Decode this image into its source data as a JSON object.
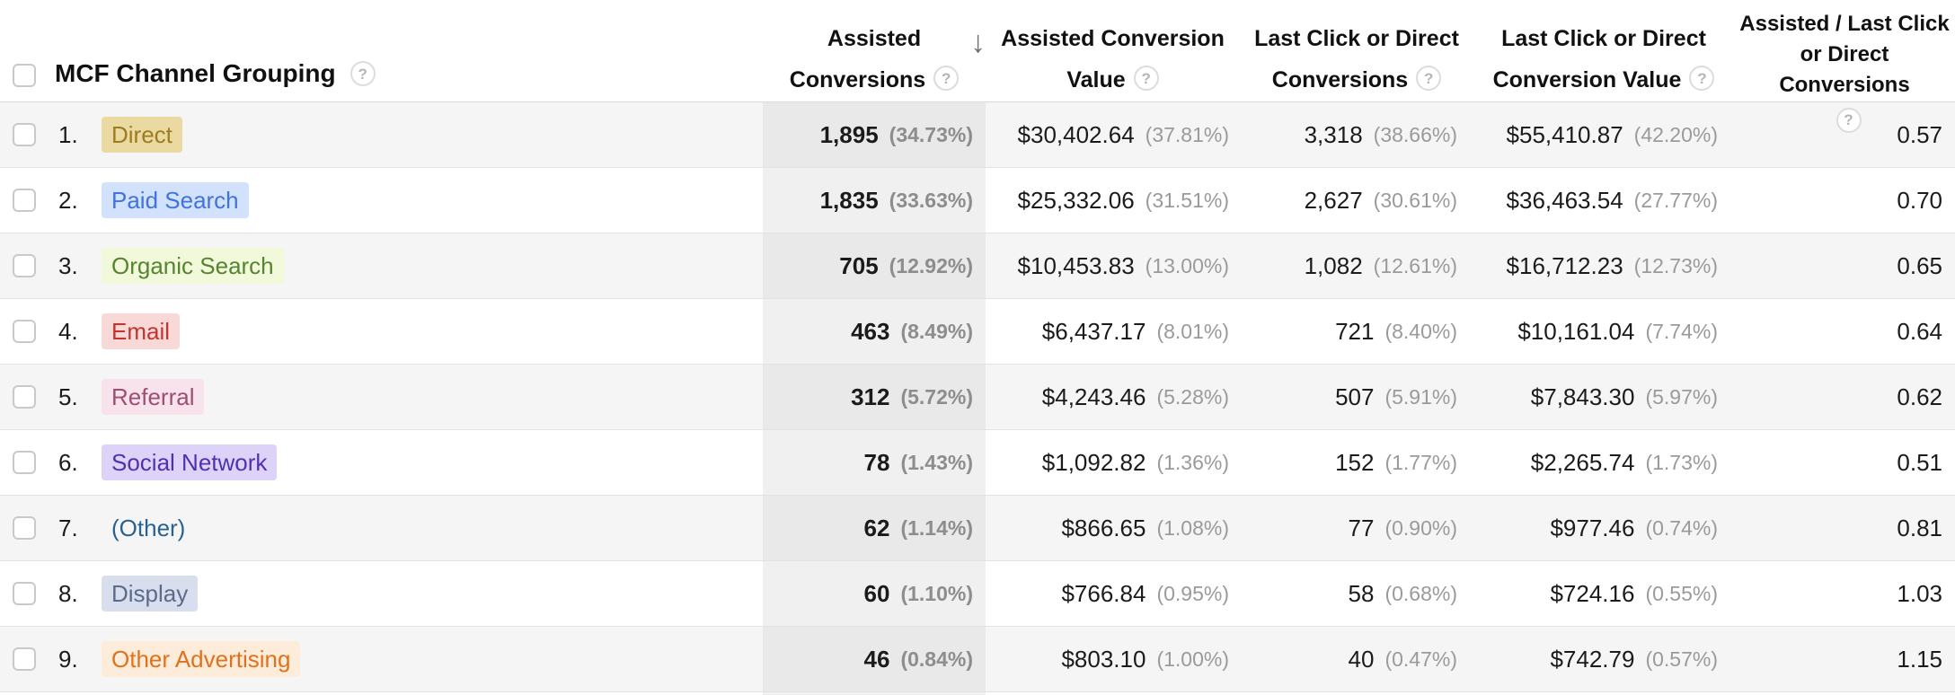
{
  "header": {
    "channel_col": "MCF Channel Grouping",
    "assisted": {
      "l1": "Assisted",
      "l2": "Conversions"
    },
    "assisted_value": {
      "l1": "Assisted Conversion",
      "l2": "Value"
    },
    "last_click": {
      "l1": "Last Click or Direct",
      "l2": "Conversions"
    },
    "last_click_value": {
      "l1": "Last Click or Direct",
      "l2": "Conversion Value"
    },
    "ratio": {
      "l1": "Assisted / Last Click",
      "l2": "or Direct Conversions"
    },
    "help_glyph": "?",
    "sort_icon": "↓",
    "sorted_column": "Assisted Conversions",
    "sort_direction": "descending"
  },
  "colors": {
    "sorted_column_bg_odd": "#e9e9e9",
    "sorted_column_bg_even": "#f0f0f0",
    "row_stripe_bg": "#f5f5f5",
    "row_border": "#e2e2e2",
    "value_text": "#1b1b1b",
    "pct_text": "#9a9a9a"
  },
  "rows": [
    {
      "num": "1.",
      "channel": "Direct",
      "chip_bg": "#ead9a1",
      "chip_fg": "#9c7c1e",
      "assisted": "1,895",
      "assisted_pct": "(34.73%)",
      "value": "$30,402.64",
      "value_pct": "(37.81%)",
      "last_click": "3,318",
      "last_click_pct": "(38.66%)",
      "last_value": "$55,410.87",
      "last_value_pct": "(42.20%)",
      "ratio": "0.57"
    },
    {
      "num": "2.",
      "channel": "Paid Search",
      "chip_bg": "#d2e2fc",
      "chip_fg": "#4173dd",
      "assisted": "1,835",
      "assisted_pct": "(33.63%)",
      "value": "$25,332.06",
      "value_pct": "(31.51%)",
      "last_click": "2,627",
      "last_click_pct": "(30.61%)",
      "last_value": "$36,463.54",
      "last_value_pct": "(27.77%)",
      "ratio": "0.70"
    },
    {
      "num": "3.",
      "channel": "Organic Search",
      "chip_bg": "#f1f9da",
      "chip_fg": "#568431",
      "assisted": "705",
      "assisted_pct": "(12.92%)",
      "value": "$10,453.83",
      "value_pct": "(13.00%)",
      "last_click": "1,082",
      "last_click_pct": "(12.61%)",
      "last_value": "$16,712.23",
      "last_value_pct": "(12.73%)",
      "ratio": "0.65"
    },
    {
      "num": "4.",
      "channel": "Email",
      "chip_bg": "#f9d9d7",
      "chip_fg": "#c5352e",
      "assisted": "463",
      "assisted_pct": "(8.49%)",
      "value": "$6,437.17",
      "value_pct": "(8.01%)",
      "last_click": "721",
      "last_click_pct": "(8.40%)",
      "last_value": "$10,161.04",
      "last_value_pct": "(7.74%)",
      "ratio": "0.64"
    },
    {
      "num": "5.",
      "channel": "Referral",
      "chip_bg": "#f8e3ed",
      "chip_fg": "#9d4e73",
      "assisted": "312",
      "assisted_pct": "(5.72%)",
      "value": "$4,243.46",
      "value_pct": "(5.28%)",
      "last_click": "507",
      "last_click_pct": "(5.91%)",
      "last_value": "$7,843.30",
      "last_value_pct": "(5.97%)",
      "ratio": "0.62"
    },
    {
      "num": "6.",
      "channel": "Social Network",
      "chip_bg": "#ddd3f9",
      "chip_fg": "#5330ae",
      "assisted": "78",
      "assisted_pct": "(1.43%)",
      "value": "$1,092.82",
      "value_pct": "(1.36%)",
      "last_click": "152",
      "last_click_pct": "(1.77%)",
      "last_value": "$2,265.74",
      "last_value_pct": "(1.73%)",
      "ratio": "0.51"
    },
    {
      "num": "7.",
      "channel": "(Other)",
      "chip_bg": "",
      "chip_fg": "#2a628f",
      "assisted": "62",
      "assisted_pct": "(1.14%)",
      "value": "$866.65",
      "value_pct": "(1.08%)",
      "last_click": "77",
      "last_click_pct": "(0.90%)",
      "last_value": "$977.46",
      "last_value_pct": "(0.74%)",
      "ratio": "0.81"
    },
    {
      "num": "8.",
      "channel": "Display",
      "chip_bg": "#d9deee",
      "chip_fg": "#5a6b8c",
      "assisted": "60",
      "assisted_pct": "(1.10%)",
      "value": "$766.84",
      "value_pct": "(0.95%)",
      "last_click": "58",
      "last_click_pct": "(0.68%)",
      "last_value": "$724.16",
      "last_value_pct": "(0.55%)",
      "ratio": "1.03"
    },
    {
      "num": "9.",
      "channel": "Other Advertising",
      "chip_bg": "#fdecd9",
      "chip_fg": "#e2711d",
      "assisted": "46",
      "assisted_pct": "(0.84%)",
      "value": "$803.10",
      "value_pct": "(1.00%)",
      "last_click": "40",
      "last_click_pct": "(0.47%)",
      "last_value": "$742.79",
      "last_value_pct": "(0.57%)",
      "ratio": "1.15"
    }
  ]
}
